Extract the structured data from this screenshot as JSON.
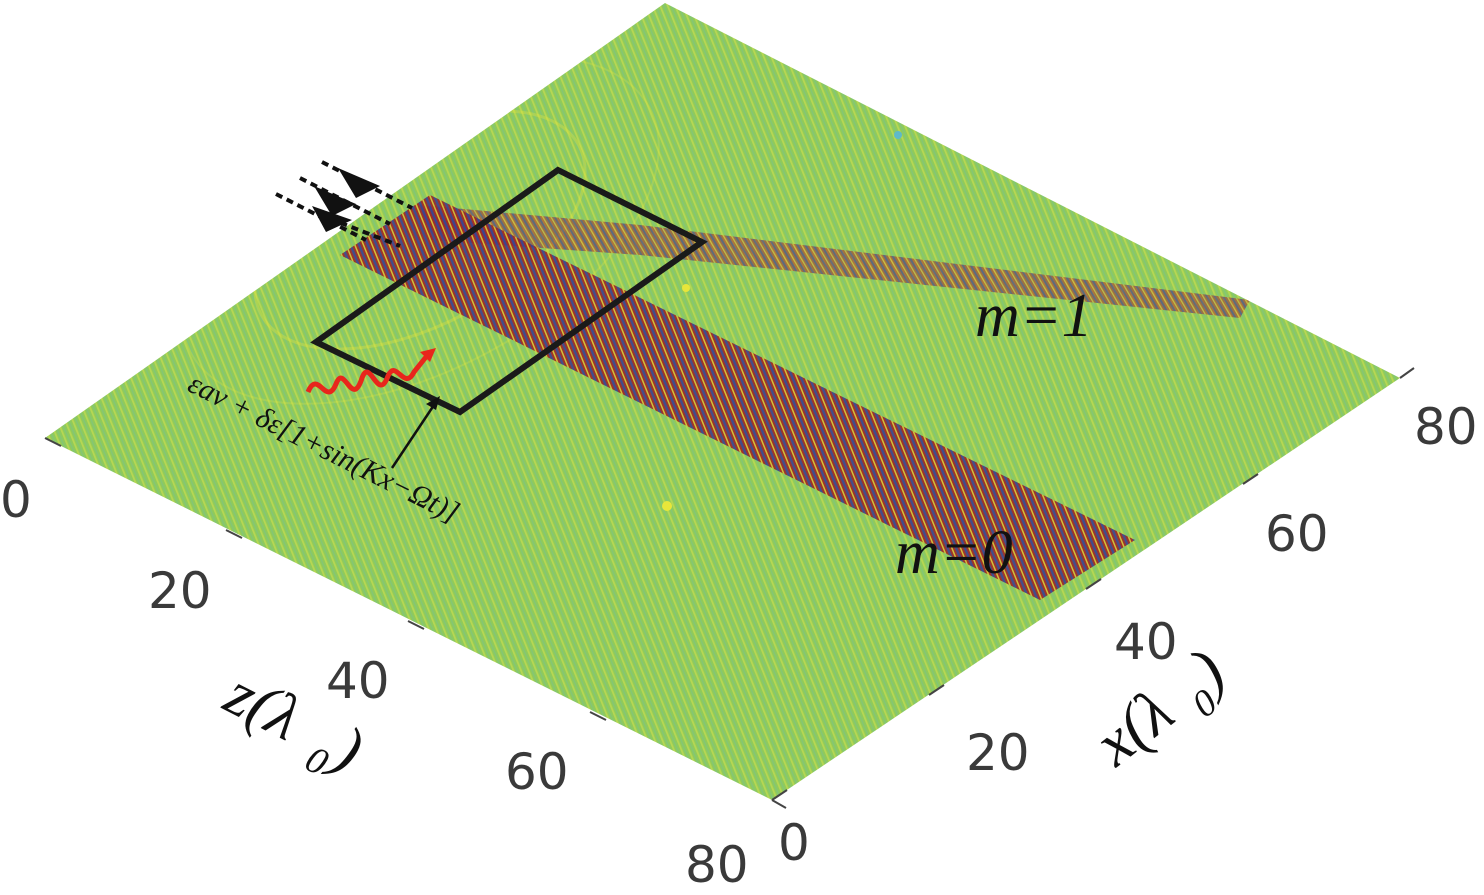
{
  "z_axis": {
    "label": "z",
    "label_unit": "λ",
    "label_unit_sub": "0",
    "ticks": [
      "0",
      "20",
      "40",
      "60",
      "80"
    ]
  },
  "x_axis": {
    "label": "x",
    "label_unit": "λ",
    "label_unit_sub": "0",
    "ticks": [
      "0",
      "20",
      "40",
      "60",
      "80"
    ]
  },
  "mode_labels": {
    "m1": "m=1",
    "m0": "m=0"
  },
  "equation": "εav + δε[1+sin(Kx−Ωt)]",
  "colors": {
    "background_field": "#8fca5c",
    "beam_red": "#8e1c1c",
    "beam_blue": "#3a3f8f",
    "fringe_yellow": "#e8e63a",
    "fringe_cyan": "#5fb9c9",
    "modulation_wave": "#e8261c",
    "box_outline": "#1a1a1a"
  },
  "icons": [
    "incident-arrow-icon",
    "modulation-wave-icon"
  ]
}
